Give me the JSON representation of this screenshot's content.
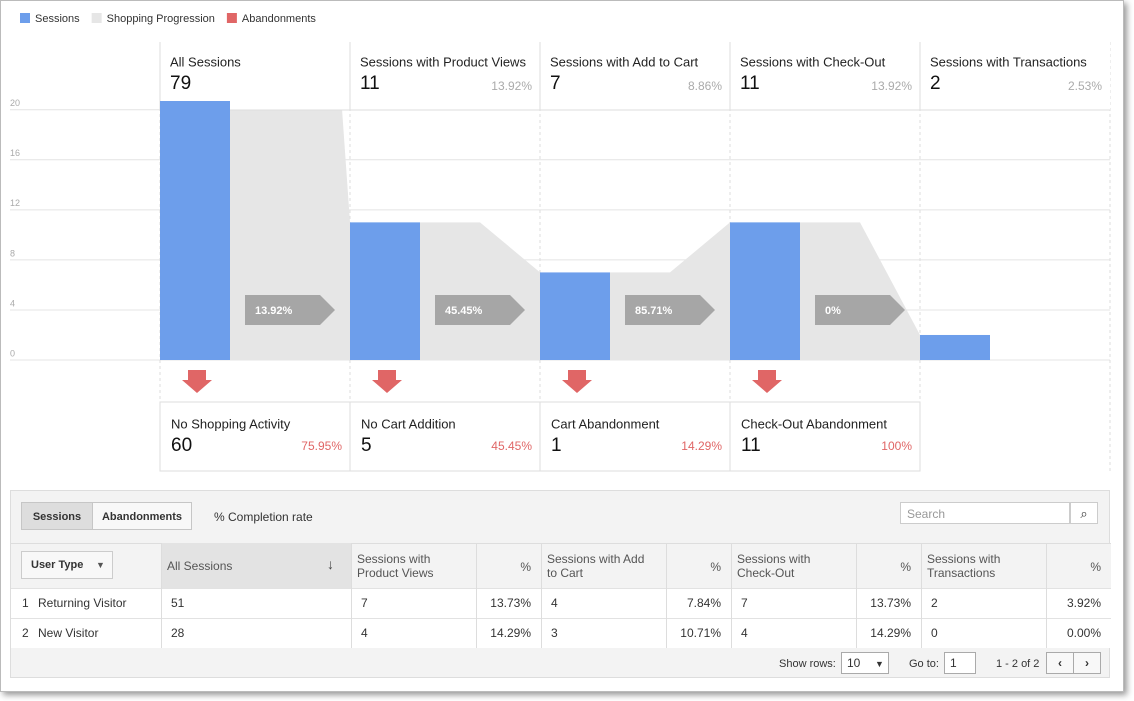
{
  "legend": [
    {
      "name": "Sessions",
      "color": "#6d9eeb"
    },
    {
      "name": "Shopping Progression",
      "color": "#e6e6e6"
    },
    {
      "name": "Abandonments",
      "color": "#e06666"
    }
  ],
  "chart_data": {
    "type": "funnel",
    "categories": [
      "All Sessions",
      "Sessions with Product Views",
      "Sessions with Add to Cart",
      "Sessions with Check-Out",
      "Sessions with Transactions"
    ],
    "values": [
      79,
      11,
      7,
      11,
      2
    ],
    "stage_shares": [
      "13.92%",
      "8.86%",
      "13.92%",
      "2.53%"
    ],
    "conversion_rates": [
      "13.92%",
      "45.45%",
      "85.71%",
      "0%"
    ],
    "abandonments": [
      {
        "name": "No Shopping Activity",
        "value": 60,
        "percent": "75.95%"
      },
      {
        "name": "No Cart Addition",
        "value": 5,
        "percent": "45.45%"
      },
      {
        "name": "Cart Abandonment",
        "value": 1,
        "percent": "14.29%"
      },
      {
        "name": "Check-Out Abandonment",
        "value": 11,
        "percent": "100%"
      }
    ],
    "color": "#6d9eeb",
    "progression_color": "#e6e6e6",
    "abandonment_color": "#e06666",
    "conversion_color": "#a6a6a6",
    "ylim": [
      0,
      20.7
    ],
    "yticks": [
      0,
      4,
      8,
      12,
      16,
      20
    ],
    "grid": true
  },
  "table": {
    "tabs": [
      "Sessions",
      "Abandonments"
    ],
    "completion_label": "% Completion rate",
    "search": "Search",
    "dimension": "User Type",
    "columns": [
      "All Sessions",
      "Sessions with Product Views",
      "%",
      "Sessions with Add to Cart",
      "%",
      "Sessions with Check-Out",
      "%",
      "Sessions with Transactions",
      "%"
    ],
    "rows": [
      [
        "1",
        "Returning Visitor",
        "51",
        "7",
        "13.73%",
        "4",
        "7.84%",
        "7",
        "13.73%",
        "2",
        "3.92%"
      ],
      [
        "2",
        "New Visitor",
        "28",
        "4",
        "14.29%",
        "3",
        "10.71%",
        "4",
        "14.29%",
        "0",
        "0.00%"
      ]
    ],
    "footer": {
      "show_rows": "Show rows:",
      "rows_value": "10",
      "goto": "Go to:",
      "goto_value": "1",
      "range": "1 - 2 of 2"
    }
  }
}
